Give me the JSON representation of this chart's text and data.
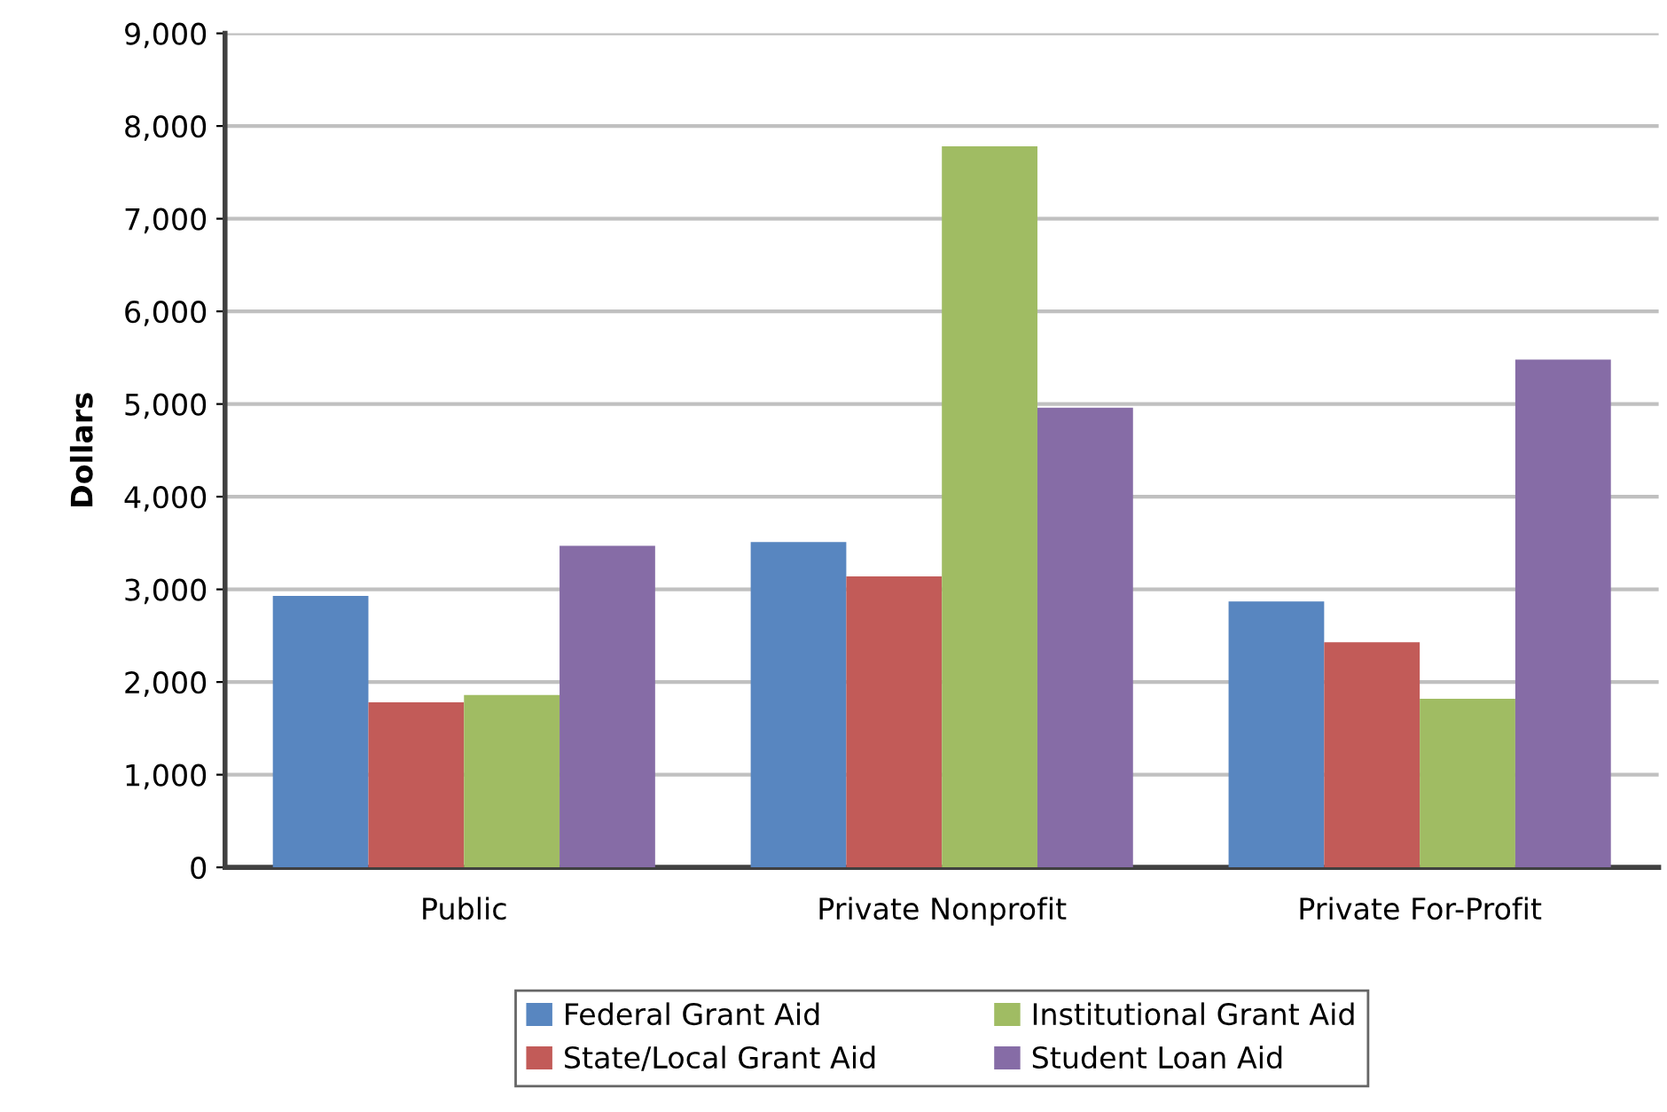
{
  "chart_data": {
    "type": "bar",
    "ylabel": "Dollars",
    "categories": [
      "Public",
      "Private Nonprofit",
      "Private For-Profit"
    ],
    "series": [
      {
        "name": "Federal Grant Aid",
        "color": "#5886c0",
        "values": [
          2930,
          3510,
          2870
        ]
      },
      {
        "name": "State/Local Grant Aid",
        "color": "#c25b58",
        "values": [
          1780,
          3140,
          2430
        ]
      },
      {
        "name": "Institutional Grant Aid",
        "color": "#a0bc63",
        "values": [
          1860,
          7780,
          1820
        ]
      },
      {
        "name": "Student Loan Aid",
        "color": "#866ca6",
        "values": [
          3470,
          4960,
          5480
        ]
      }
    ],
    "ylim": [
      0,
      9000
    ],
    "yticks": [
      {
        "value": 0,
        "label": "0"
      },
      {
        "value": 1000,
        "label": "1,000"
      },
      {
        "value": 2000,
        "label": "2,000"
      },
      {
        "value": 3000,
        "label": "3,000"
      },
      {
        "value": 4000,
        "label": "4,000"
      },
      {
        "value": 5000,
        "label": "5,000"
      },
      {
        "value": 6000,
        "label": "6,000"
      },
      {
        "value": 7000,
        "label": "7,000"
      },
      {
        "value": 8000,
        "label": "8,000"
      },
      {
        "value": 9000,
        "label": "9,000"
      }
    ],
    "grid": "y",
    "legend": "bottom"
  }
}
